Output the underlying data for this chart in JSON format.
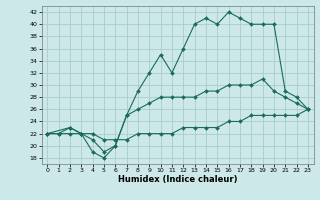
{
  "xlabel": "Humidex (Indice chaleur)",
  "bg_color": "#cce8e8",
  "grid_color": "#aacccc",
  "line_color": "#1a6b5a",
  "xlim": [
    -0.5,
    23.5
  ],
  "ylim": [
    17,
    43
  ],
  "xticks": [
    0,
    1,
    2,
    3,
    4,
    5,
    6,
    7,
    8,
    9,
    10,
    11,
    12,
    13,
    14,
    15,
    16,
    17,
    18,
    19,
    20,
    21,
    22,
    23
  ],
  "yticks": [
    18,
    20,
    22,
    24,
    26,
    28,
    30,
    32,
    34,
    36,
    38,
    40,
    42
  ],
  "line_bottom_x": [
    0,
    1,
    2,
    3,
    4,
    5,
    6,
    7,
    8,
    9,
    10,
    11,
    12,
    13,
    14,
    15,
    16,
    17,
    18,
    19,
    20,
    21,
    22,
    23
  ],
  "line_bottom_y": [
    22,
    22,
    22,
    22,
    22,
    21,
    21,
    21,
    22,
    22,
    22,
    22,
    23,
    23,
    23,
    23,
    24,
    24,
    25,
    25,
    25,
    25,
    25,
    26
  ],
  "line_top_x": [
    0,
    1,
    2,
    3,
    4,
    5,
    6,
    7,
    8,
    9,
    10,
    11,
    12,
    13,
    14,
    15,
    16,
    17,
    18,
    19,
    20,
    21,
    22,
    23
  ],
  "line_top_y": [
    22,
    22,
    23,
    22,
    19,
    18,
    20,
    25,
    29,
    32,
    35,
    32,
    36,
    40,
    41,
    40,
    42,
    41,
    40,
    40,
    40,
    29,
    28,
    26
  ],
  "line_mid_x": [
    0,
    2,
    3,
    4,
    5,
    6,
    7,
    8,
    9,
    10,
    11,
    12,
    13,
    14,
    15,
    16,
    17,
    18,
    19,
    20,
    21,
    22,
    23
  ],
  "line_mid_y": [
    22,
    23,
    22,
    21,
    19,
    20,
    25,
    26,
    27,
    28,
    28,
    28,
    28,
    29,
    29,
    30,
    30,
    30,
    31,
    29,
    28,
    27,
    26
  ]
}
